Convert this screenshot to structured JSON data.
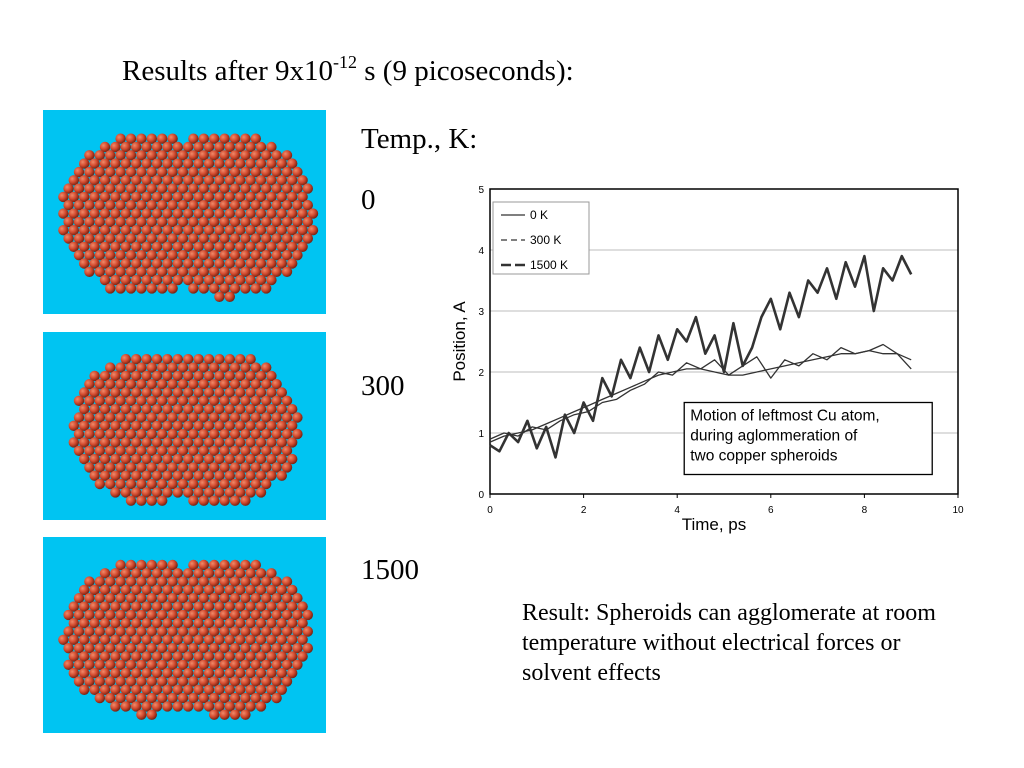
{
  "slide": {
    "title_prefix": "Results after 9x10",
    "title_exponent": "-12",
    "title_suffix": " s (9 picoseconds):",
    "temp_header": "Temp., K:",
    "temps": [
      "0",
      "300",
      "1500"
    ],
    "result_text": "Result: Spheroids can agglomerate at room temperature without electrical forces or solvent effects"
  },
  "colors": {
    "panel_bg": "#00c4f2",
    "sphere": "#d24a2e",
    "series": "#333333"
  },
  "chart_data": {
    "type": "line",
    "xlabel": "Time, ps",
    "ylabel": "Position, A",
    "xlim": [
      0,
      10
    ],
    "ylim": [
      0,
      5
    ],
    "xticks": [
      "0",
      "2",
      "4",
      "6",
      "8",
      "10"
    ],
    "yticks": [
      "0",
      "1",
      "2",
      "3",
      "4",
      "5"
    ],
    "grid": "horizontal",
    "legend_position": "top-left",
    "annotation": [
      "Motion of leftmost Cu atom,",
      "during aglommeration of",
      "two copper spheroids"
    ],
    "series": [
      {
        "name": "0 K",
        "style": "solid-thin",
        "x": [
          0,
          0.3,
          0.6,
          0.9,
          1.2,
          1.5,
          1.8,
          2.1,
          2.4,
          2.7,
          3.0,
          3.3,
          3.6,
          3.9,
          4.2,
          4.5,
          4.8,
          5.1,
          5.4,
          5.7,
          6.0,
          6.3,
          6.6,
          6.9,
          7.2,
          7.5,
          7.8,
          8.1,
          8.4,
          8.7,
          9.0
        ],
        "y": [
          0.85,
          0.95,
          1.0,
          1.05,
          1.15,
          1.25,
          1.35,
          1.45,
          1.55,
          1.65,
          1.75,
          1.85,
          1.95,
          2.0,
          2.05,
          2.05,
          2.0,
          1.95,
          1.95,
          2.0,
          2.05,
          2.1,
          2.15,
          2.2,
          2.25,
          2.3,
          2.3,
          2.35,
          2.3,
          2.3,
          2.2
        ]
      },
      {
        "name": "300 K",
        "style": "dashed",
        "x": [
          0,
          0.3,
          0.6,
          0.9,
          1.2,
          1.5,
          1.8,
          2.1,
          2.4,
          2.7,
          3.0,
          3.3,
          3.6,
          3.9,
          4.2,
          4.5,
          4.8,
          5.1,
          5.4,
          5.7,
          6.0,
          6.3,
          6.6,
          6.9,
          7.2,
          7.5,
          7.8,
          8.1,
          8.4,
          8.7,
          9.0
        ],
        "y": [
          0.9,
          1.0,
          0.95,
          1.1,
          1.05,
          1.2,
          1.3,
          1.35,
          1.5,
          1.55,
          1.7,
          1.8,
          2.0,
          1.95,
          2.15,
          2.05,
          2.2,
          1.95,
          2.1,
          2.25,
          1.9,
          2.2,
          2.1,
          2.3,
          2.2,
          2.4,
          2.3,
          2.35,
          2.45,
          2.3,
          2.05
        ]
      },
      {
        "name": "1500 K",
        "style": "dashed-thick",
        "x": [
          0,
          0.2,
          0.4,
          0.6,
          0.8,
          1.0,
          1.2,
          1.4,
          1.6,
          1.8,
          2.0,
          2.2,
          2.4,
          2.6,
          2.8,
          3.0,
          3.2,
          3.4,
          3.6,
          3.8,
          4.0,
          4.2,
          4.4,
          4.6,
          4.8,
          5.0,
          5.2,
          5.4,
          5.6,
          5.8,
          6.0,
          6.2,
          6.4,
          6.6,
          6.8,
          7.0,
          7.2,
          7.4,
          7.6,
          7.8,
          8.0,
          8.2,
          8.4,
          8.6,
          8.8,
          9.0
        ],
        "y": [
          0.8,
          0.7,
          1.0,
          0.85,
          1.2,
          0.75,
          1.1,
          0.6,
          1.3,
          1.0,
          1.5,
          1.2,
          1.9,
          1.6,
          2.2,
          1.9,
          2.4,
          2.0,
          2.6,
          2.2,
          2.7,
          2.5,
          2.9,
          2.3,
          2.6,
          2.0,
          2.8,
          2.1,
          2.4,
          2.9,
          3.2,
          2.7,
          3.3,
          2.9,
          3.5,
          3.3,
          3.7,
          3.2,
          3.8,
          3.4,
          3.9,
          3.0,
          3.7,
          3.5,
          3.9,
          3.6
        ]
      }
    ]
  }
}
